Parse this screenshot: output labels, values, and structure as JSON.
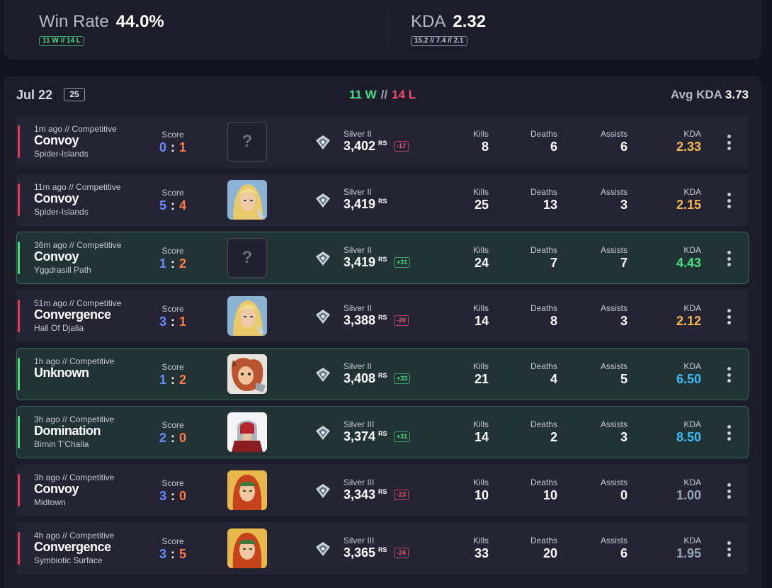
{
  "summary": {
    "win_rate_label": "Win Rate",
    "win_rate_value": "44.0%",
    "win_rate_detail": "11 W // 14 L",
    "kda_label": "KDA",
    "kda_value": "2.32",
    "kda_detail": "15.2 // 7.4 // 2.1"
  },
  "day": {
    "date": "Jul 22",
    "count": "25",
    "wins": "11 W",
    "separator": "//",
    "losses": "14 L",
    "avg_kda_label": "Avg KDA",
    "avg_kda_value": "3.73"
  },
  "labels": {
    "score": "Score",
    "kills": "Kills",
    "deaths": "Deaths",
    "assists": "Assists",
    "kda": "KDA",
    "rs_suffix": "RS",
    "score_separator": ":"
  },
  "colors": {
    "win": "#4ade80",
    "loss": "#e63a57",
    "our_score": "#6c8cff",
    "their_score": "#ff7a45"
  },
  "matches": [
    {
      "time": "1m ago",
      "sep": "//",
      "queue": "Competitive",
      "mode": "Convoy",
      "map": "Spider-Islands",
      "score_ours": "0",
      "score_theirs": "1",
      "hero": "unknown",
      "hero_placeholder": "?",
      "tier": "Silver II",
      "rs": "3,402",
      "delta": "-17",
      "kills": "8",
      "deaths": "6",
      "assists": "6",
      "kda": "2.33"
    },
    {
      "time": "11m ago",
      "sep": "//",
      "queue": "Competitive",
      "mode": "Convoy",
      "map": "Spider-Islands",
      "score_ours": "5",
      "score_theirs": "4",
      "hero": "blonde-hero-portrait",
      "tier": "Silver II",
      "rs": "3,419",
      "delta": "",
      "kills": "25",
      "deaths": "13",
      "assists": "3",
      "kda": "2.15"
    },
    {
      "time": "36m ago",
      "sep": "//",
      "queue": "Competitive",
      "mode": "Convoy",
      "map": "Yggdrasill Path",
      "score_ours": "1",
      "score_theirs": "2",
      "hero": "unknown",
      "hero_placeholder": "?",
      "tier": "Silver II",
      "rs": "3,419",
      "delta": "+31",
      "kills": "24",
      "deaths": "7",
      "assists": "7",
      "kda": "4.43"
    },
    {
      "time": "51m ago",
      "sep": "//",
      "queue": "Competitive",
      "mode": "Convergence",
      "map": "Hall Of Djalia",
      "score_ours": "3",
      "score_theirs": "1",
      "hero": "blonde-hero-portrait",
      "tier": "Silver II",
      "rs": "3,388",
      "delta": "-20",
      "kills": "14",
      "deaths": "8",
      "assists": "3",
      "kda": "2.12"
    },
    {
      "time": "1h ago",
      "sep": "//",
      "queue": "Competitive",
      "mode": "Unknown",
      "map": "",
      "score_ours": "1",
      "score_theirs": "2",
      "hero": "squirrel-hero-portrait",
      "tier": "Silver II",
      "rs": "3,408",
      "delta": "+33",
      "kills": "21",
      "deaths": "4",
      "assists": "5",
      "kda": "6.50"
    },
    {
      "time": "3h ago",
      "sep": "//",
      "queue": "Competitive",
      "mode": "Domination",
      "map": "Birnin T'Challa",
      "score_ours": "2",
      "score_theirs": "0",
      "hero": "helmet-hero-portrait",
      "tier": "Silver III",
      "rs": "3,374",
      "delta": "+31",
      "kills": "14",
      "deaths": "2",
      "assists": "3",
      "kda": "8.50"
    },
    {
      "time": "3h ago",
      "sep": "//",
      "queue": "Competitive",
      "mode": "Convoy",
      "map": "Midtown",
      "score_ours": "3",
      "score_theirs": "0",
      "hero": "redhead-hero-portrait",
      "tier": "Silver III",
      "rs": "3,343",
      "delta": "-23",
      "kills": "10",
      "deaths": "10",
      "assists": "0",
      "kda": "1.00"
    },
    {
      "time": "4h ago",
      "sep": "//",
      "queue": "Competitive",
      "mode": "Convergence",
      "map": "Symbiotic Surface",
      "score_ours": "3",
      "score_theirs": "5",
      "hero": "redhead-hero-portrait",
      "tier": "Silver III",
      "rs": "3,365",
      "delta": "-24",
      "kills": "33",
      "deaths": "20",
      "assists": "6",
      "kda": "1.95"
    }
  ]
}
